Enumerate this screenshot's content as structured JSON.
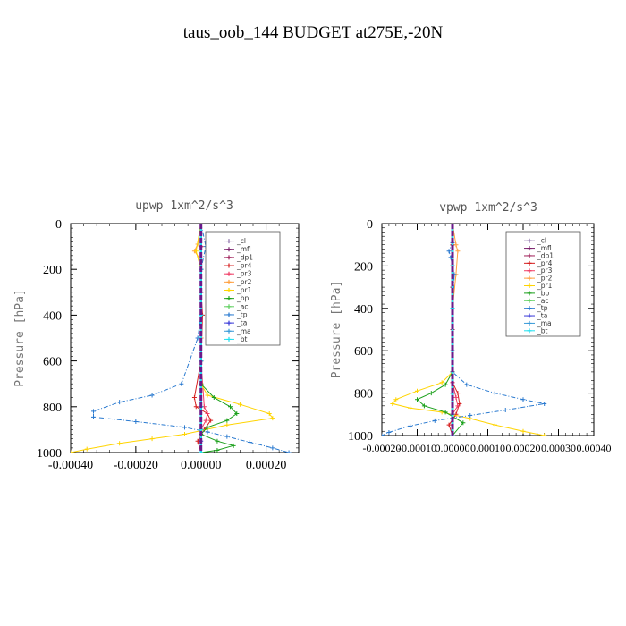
{
  "figure": {
    "title": "taus_oob_144  BUDGET at275E,-20N"
  },
  "chart_data": [
    {
      "type": "line",
      "title": "upwp   1xm^2/s^3",
      "xlabel": "",
      "ylabel": "Pressure [hPa]",
      "xlim": [
        -0.0004,
        0.0003
      ],
      "ylim": [
        1000,
        0
      ],
      "y_inverted": true,
      "xticks": [
        -0.0004,
        -0.0002,
        0.0,
        0.0002
      ],
      "xtick_labels": [
        "-0.00040",
        "-0.00020",
        "0.00000",
        "0.00020"
      ],
      "yticks": [
        0,
        200,
        400,
        600,
        800,
        1000
      ],
      "ytick_labels": [
        "0",
        "200",
        "400",
        "600",
        "800",
        "1000"
      ],
      "legend_position": "top-right",
      "series": [
        {
          "name": "_cl",
          "color": "#8a6fa8",
          "x": [
            0,
            0,
            0,
            0,
            0,
            0,
            0,
            0,
            0,
            0,
            0
          ],
          "y": [
            0,
            100,
            200,
            300,
            400,
            500,
            600,
            700,
            800,
            900,
            1000
          ]
        },
        {
          "name": "_mfl",
          "color": "#7a1f6a",
          "x": [
            0,
            0,
            0,
            0,
            0,
            0,
            0,
            0,
            0,
            0,
            0
          ],
          "y": [
            0,
            100,
            200,
            300,
            400,
            500,
            600,
            700,
            800,
            900,
            1000
          ]
        },
        {
          "name": "_dp1",
          "color": "#a0205a",
          "x": [
            0,
            0,
            0,
            0,
            0,
            0,
            0,
            0,
            0,
            0,
            0
          ],
          "y": [
            0,
            100,
            200,
            300,
            400,
            500,
            600,
            700,
            800,
            900,
            1000
          ]
        },
        {
          "name": "_pr4",
          "color": "#d62020",
          "x": [
            0,
            0,
            0,
            0,
            5e-06,
            0,
            -2e-05,
            -1.5e-05,
            2e-05,
            3e-05,
            1e-05,
            -1e-05,
            0
          ],
          "y": [
            0,
            100,
            200,
            300,
            400,
            600,
            760,
            800,
            830,
            860,
            900,
            950,
            1000
          ]
        },
        {
          "name": "_pr3",
          "color": "#f03c64",
          "x": [
            0,
            0,
            0,
            0,
            0,
            0,
            1e-05,
            2e-05,
            1.5e-05,
            0,
            0
          ],
          "y": [
            0,
            100,
            200,
            300,
            400,
            600,
            800,
            830,
            860,
            900,
            1000
          ]
        },
        {
          "name": "_pr2",
          "color": "#ffa040",
          "x": [
            0,
            -1e-05,
            -2e-05,
            0,
            0,
            0,
            0,
            0,
            0,
            0
          ],
          "y": [
            0,
            90,
            120,
            160,
            300,
            500,
            700,
            800,
            900,
            1000
          ]
        },
        {
          "name": "_pr1",
          "color": "#ffd400",
          "x": [
            0,
            -1.5e-05,
            0,
            0,
            0,
            2e-05,
            0.00012,
            0.00021,
            0.00022,
            8e-05,
            -5e-05,
            -0.00015,
            -0.00025,
            -0.00035,
            -0.0004
          ],
          "y": [
            0,
            120,
            200,
            400,
            700,
            750,
            790,
            830,
            850,
            880,
            920,
            940,
            960,
            985,
            1000
          ]
        },
        {
          "name": "_bp",
          "color": "#1aa01a",
          "x": [
            0,
            0,
            0,
            0,
            4e-05,
            9e-05,
            0.00011,
            8e-05,
            2e-05,
            0,
            5e-05,
            0.0001,
            5e-05,
            0
          ],
          "y": [
            0,
            200,
            400,
            700,
            760,
            800,
            830,
            860,
            890,
            920,
            950,
            970,
            990,
            1000
          ]
        },
        {
          "name": "_ac",
          "color": "#60d060",
          "x": [
            0,
            0,
            0,
            0,
            0,
            0,
            0
          ],
          "y": [
            0,
            200,
            400,
            600,
            800,
            900,
            1000
          ]
        },
        {
          "name": "_tp",
          "color": "#2a7ad0",
          "x": [
            0,
            1.5e-05,
            0,
            0,
            0,
            -1e-05,
            -6e-05,
            -0.00015,
            -0.00025,
            -0.00033,
            -0.00033,
            -0.0002,
            -5e-05,
            2e-05,
            8e-05,
            0.00015,
            0.00022,
            0.00027
          ],
          "y": [
            0,
            100,
            200,
            300,
            400,
            500,
            700,
            750,
            780,
            820,
            845,
            865,
            890,
            910,
            930,
            955,
            980,
            1000
          ]
        },
        {
          "name": "_ta",
          "color": "#3a3ad8",
          "x": [
            0,
            0,
            0,
            0,
            0,
            0,
            0,
            0
          ],
          "y": [
            0,
            200,
            400,
            600,
            800,
            900,
            950,
            1000
          ]
        },
        {
          "name": "_ma",
          "color": "#3a9ad8",
          "x": [
            0,
            0,
            0,
            0,
            0,
            0,
            0
          ],
          "y": [
            0,
            200,
            400,
            600,
            800,
            900,
            1000
          ]
        },
        {
          "name": "_bt",
          "color": "#20e0f0",
          "x": [
            0,
            0,
            0,
            0,
            0,
            0,
            0
          ],
          "y": [
            0,
            200,
            400,
            600,
            800,
            900,
            1000
          ]
        }
      ]
    },
    {
      "type": "line",
      "title": "vpwp   1xm^2/s^3",
      "xlabel": "",
      "ylabel": "Pressure [hPa]",
      "xlim": [
        -0.0002,
        0.0004
      ],
      "ylim": [
        1000,
        0
      ],
      "y_inverted": true,
      "xticks": [
        -0.0002,
        -0.0001,
        0.0,
        0.0001,
        0.0002,
        0.0003,
        0.0004
      ],
      "xtick_labels": [
        "-0.00020",
        "-0.00010",
        "0.00000",
        "0.00010",
        "0.00020",
        "0.00030",
        "0.00040"
      ],
      "yticks": [
        0,
        200,
        400,
        600,
        800,
        1000
      ],
      "ytick_labels": [
        "0",
        "200",
        "400",
        "600",
        "800",
        "1000"
      ],
      "legend_position": "top-right",
      "series": [
        {
          "name": "_cl",
          "color": "#8a6fa8",
          "x": [
            0,
            0,
            0,
            0,
            0,
            0,
            0,
            0,
            0,
            0,
            0
          ],
          "y": [
            0,
            100,
            200,
            300,
            400,
            500,
            600,
            700,
            800,
            900,
            1000
          ]
        },
        {
          "name": "_mfl",
          "color": "#7a1f6a",
          "x": [
            0,
            0,
            0,
            0,
            0,
            0,
            0,
            0,
            0,
            0,
            0
          ],
          "y": [
            0,
            100,
            200,
            300,
            400,
            500,
            600,
            700,
            800,
            900,
            1000
          ]
        },
        {
          "name": "_dp1",
          "color": "#a0205a",
          "x": [
            0,
            0,
            0,
            0,
            0,
            0,
            0,
            0,
            0,
            0,
            0
          ],
          "y": [
            0,
            100,
            200,
            300,
            400,
            500,
            600,
            700,
            800,
            900,
            1000
          ]
        },
        {
          "name": "_pr4",
          "color": "#d62020",
          "x": [
            0,
            0,
            0,
            0,
            0,
            1.5e-05,
            2e-05,
            1e-05,
            -1e-05,
            0
          ],
          "y": [
            0,
            100,
            200,
            400,
            750,
            800,
            850,
            900,
            950,
            1000
          ]
        },
        {
          "name": "_pr3",
          "color": "#f03c64",
          "x": [
            0,
            0,
            0,
            0,
            1e-05,
            1.5e-05,
            0,
            0
          ],
          "y": [
            0,
            200,
            400,
            750,
            820,
            860,
            900,
            1000
          ]
        },
        {
          "name": "_pr2",
          "color": "#ffa040",
          "x": [
            0,
            1e-05,
            1.5e-05,
            1e-05,
            0,
            0,
            0,
            0
          ],
          "y": [
            0,
            100,
            130,
            240,
            400,
            700,
            900,
            1000
          ]
        },
        {
          "name": "_pr1",
          "color": "#ffd400",
          "x": [
            0,
            0,
            0,
            -3e-05,
            -0.0001,
            -0.00016,
            -0.00017,
            -0.00012,
            -3e-05,
            5e-05,
            0.00012,
            0.0002,
            0.00026
          ],
          "y": [
            0,
            400,
            700,
            750,
            790,
            830,
            850,
            870,
            890,
            920,
            950,
            980,
            1000
          ]
        },
        {
          "name": "_bp",
          "color": "#1aa01a",
          "x": [
            0,
            0,
            0,
            -2e-05,
            -6e-05,
            -0.0001,
            -8e-05,
            -2e-05,
            3e-05,
            0
          ],
          "y": [
            0,
            400,
            700,
            760,
            800,
            830,
            860,
            890,
            940,
            1000
          ]
        },
        {
          "name": "_ac",
          "color": "#60d060",
          "x": [
            0,
            0,
            0,
            0,
            0,
            0
          ],
          "y": [
            0,
            200,
            400,
            600,
            800,
            1000
          ]
        },
        {
          "name": "_tp",
          "color": "#2a7ad0",
          "x": [
            0,
            0,
            -1e-05,
            -5e-06,
            5e-06,
            0,
            0,
            4e-05,
            0.00012,
            0.0002,
            0.00026,
            0.00015,
            5e-05,
            -5e-05,
            -0.00012,
            -0.00018,
            -0.0002
          ],
          "y": [
            0,
            90,
            130,
            160,
            240,
            400,
            700,
            760,
            800,
            830,
            850,
            880,
            905,
            930,
            955,
            985,
            1000
          ]
        },
        {
          "name": "_ta",
          "color": "#3a3ad8",
          "x": [
            0,
            0,
            0,
            0,
            0,
            0,
            0
          ],
          "y": [
            0,
            200,
            400,
            600,
            800,
            900,
            1000
          ]
        },
        {
          "name": "_ma",
          "color": "#3a9ad8",
          "x": [
            0,
            0,
            0,
            0,
            0,
            0,
            0
          ],
          "y": [
            0,
            200,
            400,
            600,
            800,
            900,
            1000
          ]
        },
        {
          "name": "_bt",
          "color": "#20e0f0",
          "x": [
            0,
            0,
            0,
            0,
            0,
            0
          ],
          "y": [
            0,
            200,
            400,
            600,
            800,
            1000
          ]
        }
      ]
    }
  ]
}
